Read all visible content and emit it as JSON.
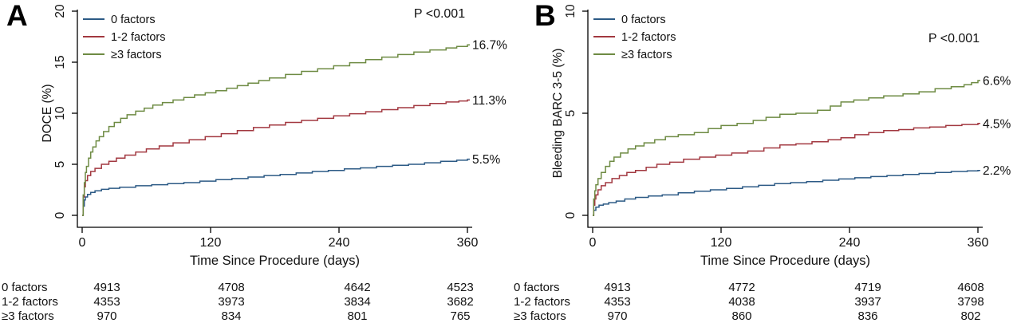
{
  "chart_data": [
    {
      "type": "line",
      "step": true,
      "panel_label": "A",
      "xlabel": "Time Since Procedure (days)",
      "ylabel": "DOCE (%)",
      "p_value": "P <0.001",
      "xlim": [
        0,
        360
      ],
      "ylim": [
        0,
        20
      ],
      "xticks": [
        0,
        120,
        240,
        360
      ],
      "yticks": [
        0,
        5,
        10,
        15,
        20
      ],
      "legend_position": "top-left",
      "grid": false,
      "series": [
        {
          "name": "0 factors",
          "color": "#2c5a85",
          "end_label": "5.5%",
          "points": [
            [
              0,
              0
            ],
            [
              1,
              0.9
            ],
            [
              2,
              1.5
            ],
            [
              3,
              1.8
            ],
            [
              5,
              2.05
            ],
            [
              8,
              2.25
            ],
            [
              12,
              2.4
            ],
            [
              18,
              2.55
            ],
            [
              25,
              2.65
            ],
            [
              35,
              2.75
            ],
            [
              50,
              2.9
            ],
            [
              65,
              3.0
            ],
            [
              80,
              3.1
            ],
            [
              95,
              3.2
            ],
            [
              110,
              3.35
            ],
            [
              125,
              3.5
            ],
            [
              140,
              3.6
            ],
            [
              155,
              3.75
            ],
            [
              170,
              3.9
            ],
            [
              185,
              4.0
            ],
            [
              200,
              4.15
            ],
            [
              215,
              4.3
            ],
            [
              230,
              4.4
            ],
            [
              245,
              4.55
            ],
            [
              260,
              4.65
            ],
            [
              275,
              4.8
            ],
            [
              290,
              4.9
            ],
            [
              305,
              5.0
            ],
            [
              320,
              5.15
            ],
            [
              335,
              5.3
            ],
            [
              350,
              5.4
            ],
            [
              360,
              5.5
            ]
          ]
        },
        {
          "name": "1-2 factors",
          "color": "#a23840",
          "end_label": "11.3%",
          "points": [
            [
              0,
              0
            ],
            [
              1,
              1.8
            ],
            [
              2,
              2.8
            ],
            [
              3,
              3.4
            ],
            [
              5,
              3.9
            ],
            [
              8,
              4.3
            ],
            [
              12,
              4.6
            ],
            [
              18,
              5.0
            ],
            [
              25,
              5.3
            ],
            [
              32,
              5.6
            ],
            [
              40,
              5.9
            ],
            [
              50,
              6.2
            ],
            [
              60,
              6.5
            ],
            [
              72,
              6.8
            ],
            [
              85,
              7.1
            ],
            [
              100,
              7.4
            ],
            [
              115,
              7.7
            ],
            [
              130,
              8.0
            ],
            [
              145,
              8.3
            ],
            [
              160,
              8.6
            ],
            [
              175,
              8.85
            ],
            [
              190,
              9.1
            ],
            [
              205,
              9.3
            ],
            [
              220,
              9.5
            ],
            [
              235,
              9.75
            ],
            [
              250,
              9.95
            ],
            [
              265,
              10.15
            ],
            [
              280,
              10.35
            ],
            [
              295,
              10.55
            ],
            [
              310,
              10.75
            ],
            [
              325,
              10.95
            ],
            [
              340,
              11.1
            ],
            [
              352,
              11.2
            ],
            [
              360,
              11.3
            ]
          ]
        },
        {
          "name": "≥3 factors",
          "color": "#6e8b43",
          "end_label": "16.7%",
          "points": [
            [
              0,
              0
            ],
            [
              1,
              2.0
            ],
            [
              2,
              3.2
            ],
            [
              3,
              4.2
            ],
            [
              4,
              4.8
            ],
            [
              6,
              5.6
            ],
            [
              8,
              6.2
            ],
            [
              10,
              6.7
            ],
            [
              13,
              7.3
            ],
            [
              16,
              7.7
            ],
            [
              20,
              8.2
            ],
            [
              25,
              8.7
            ],
            [
              30,
              9.1
            ],
            [
              36,
              9.5
            ],
            [
              42,
              9.85
            ],
            [
              50,
              10.2
            ],
            [
              58,
              10.5
            ],
            [
              66,
              10.8
            ],
            [
              75,
              11.05
            ],
            [
              85,
              11.3
            ],
            [
              95,
              11.55
            ],
            [
              105,
              11.8
            ],
            [
              115,
              12.0
            ],
            [
              125,
              12.2
            ],
            [
              135,
              12.45
            ],
            [
              145,
              12.7
            ],
            [
              155,
              12.95
            ],
            [
              165,
              13.2
            ],
            [
              175,
              13.45
            ],
            [
              190,
              13.8
            ],
            [
              205,
              14.1
            ],
            [
              220,
              14.35
            ],
            [
              235,
              14.65
            ],
            [
              250,
              14.95
            ],
            [
              265,
              15.25
            ],
            [
              280,
              15.5
            ],
            [
              295,
              15.75
            ],
            [
              310,
              16.0
            ],
            [
              325,
              16.2
            ],
            [
              340,
              16.4
            ],
            [
              350,
              16.55
            ],
            [
              360,
              16.7
            ]
          ]
        }
      ],
      "risk_table": {
        "times": [
          0,
          120,
          240,
          360
        ],
        "rows": [
          {
            "label": "0 factors",
            "values": [
              "4913",
              "4708",
              "4642",
              "4523"
            ]
          },
          {
            "label": "1-2 factors",
            "values": [
              "4353",
              "3973",
              "3834",
              "3682"
            ]
          },
          {
            "label": "≥3 factors",
            "values": [
              "970",
              "834",
              "801",
              "765"
            ]
          }
        ]
      }
    },
    {
      "type": "line",
      "step": true,
      "panel_label": "B",
      "xlabel": "Time Since Procedure (days)",
      "ylabel": "Bleeding BARC 3-5 (%)",
      "p_value": "P <0.001",
      "xlim": [
        0,
        360
      ],
      "ylim": [
        0,
        10
      ],
      "xticks": [
        0,
        120,
        240,
        360
      ],
      "yticks": [
        0,
        5,
        10
      ],
      "legend_position": "top-left",
      "grid": false,
      "series": [
        {
          "name": "0 factors",
          "color": "#2c5a85",
          "end_label": "2.2%",
          "points": [
            [
              0,
              0
            ],
            [
              1,
              0.25
            ],
            [
              3,
              0.4
            ],
            [
              6,
              0.5
            ],
            [
              10,
              0.55
            ],
            [
              15,
              0.62
            ],
            [
              22,
              0.7
            ],
            [
              30,
              0.8
            ],
            [
              40,
              0.88
            ],
            [
              52,
              0.95
            ],
            [
              65,
              1.0
            ],
            [
              80,
              1.1
            ],
            [
              95,
              1.18
            ],
            [
              110,
              1.25
            ],
            [
              125,
              1.32
            ],
            [
              140,
              1.4
            ],
            [
              155,
              1.47
            ],
            [
              170,
              1.55
            ],
            [
              185,
              1.6
            ],
            [
              200,
              1.65
            ],
            [
              215,
              1.72
            ],
            [
              230,
              1.78
            ],
            [
              245,
              1.84
            ],
            [
              260,
              1.9
            ],
            [
              275,
              1.95
            ],
            [
              290,
              2.0
            ],
            [
              305,
              2.05
            ],
            [
              320,
              2.1
            ],
            [
              335,
              2.15
            ],
            [
              350,
              2.18
            ],
            [
              360,
              2.2
            ]
          ]
        },
        {
          "name": "1-2 factors",
          "color": "#a23840",
          "end_label": "4.5%",
          "points": [
            [
              0,
              0
            ],
            [
              1,
              0.5
            ],
            [
              2,
              0.8
            ],
            [
              3,
              1.0
            ],
            [
              5,
              1.25
            ],
            [
              8,
              1.45
            ],
            [
              12,
              1.6
            ],
            [
              18,
              1.8
            ],
            [
              25,
              1.95
            ],
            [
              32,
              2.1
            ],
            [
              40,
              2.2
            ],
            [
              50,
              2.35
            ],
            [
              60,
              2.5
            ],
            [
              72,
              2.6
            ],
            [
              85,
              2.75
            ],
            [
              100,
              2.85
            ],
            [
              115,
              2.95
            ],
            [
              130,
              3.05
            ],
            [
              145,
              3.15
            ],
            [
              160,
              3.3
            ],
            [
              175,
              3.45
            ],
            [
              190,
              3.5
            ],
            [
              205,
              3.6
            ],
            [
              220,
              3.7
            ],
            [
              232,
              3.8
            ],
            [
              245,
              3.95
            ],
            [
              258,
              4.05
            ],
            [
              272,
              4.15
            ],
            [
              286,
              4.2
            ],
            [
              300,
              4.28
            ],
            [
              315,
              4.33
            ],
            [
              330,
              4.4
            ],
            [
              345,
              4.45
            ],
            [
              360,
              4.5
            ]
          ]
        },
        {
          "name": "≥3 factors",
          "color": "#6e8b43",
          "end_label": "6.6%",
          "points": [
            [
              0,
              0
            ],
            [
              1,
              0.8
            ],
            [
              2,
              1.2
            ],
            [
              3,
              1.5
            ],
            [
              5,
              1.8
            ],
            [
              8,
              2.1
            ],
            [
              12,
              2.4
            ],
            [
              16,
              2.65
            ],
            [
              20,
              2.85
            ],
            [
              26,
              3.05
            ],
            [
              33,
              3.25
            ],
            [
              40,
              3.4
            ],
            [
              48,
              3.55
            ],
            [
              58,
              3.7
            ],
            [
              68,
              3.85
            ],
            [
              80,
              3.95
            ],
            [
              95,
              4.05
            ],
            [
              108,
              4.25
            ],
            [
              120,
              4.4
            ],
            [
              135,
              4.5
            ],
            [
              150,
              4.65
            ],
            [
              162,
              4.8
            ],
            [
              175,
              4.95
            ],
            [
              190,
              5.0
            ],
            [
              210,
              5.15
            ],
            [
              222,
              5.35
            ],
            [
              232,
              5.55
            ],
            [
              244,
              5.65
            ],
            [
              258,
              5.75
            ],
            [
              272,
              5.85
            ],
            [
              290,
              5.95
            ],
            [
              305,
              6.05
            ],
            [
              320,
              6.2
            ],
            [
              335,
              6.3
            ],
            [
              347,
              6.4
            ],
            [
              354,
              6.5
            ],
            [
              360,
              6.6
            ]
          ]
        }
      ],
      "risk_table": {
        "times": [
          0,
          120,
          240,
          360
        ],
        "rows": [
          {
            "label": "0 factors",
            "values": [
              "4913",
              "4772",
              "4719",
              "4608"
            ]
          },
          {
            "label": "1-2 factors",
            "values": [
              "4353",
              "4038",
              "3937",
              "3798"
            ]
          },
          {
            "label": "≥3 factors",
            "values": [
              "970",
              "860",
              "836",
              "802"
            ]
          }
        ]
      }
    }
  ]
}
